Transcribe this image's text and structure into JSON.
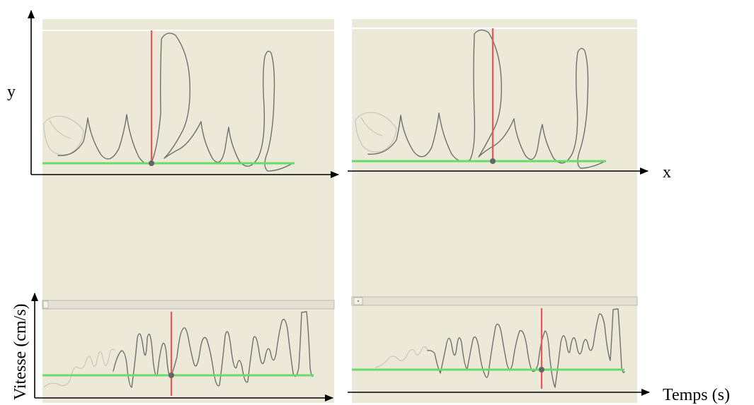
{
  "labels": {
    "y_axis": "y",
    "x_axis": "x",
    "velocity_axis": "Vitesse (cm/s)",
    "time_axis": "Temps (s)"
  },
  "colors": {
    "background": "#ece9d8",
    "baseline": "#66dd66",
    "cursor": "#ee5555",
    "ink": "#707070",
    "ghost_ink": "#c8c6bc",
    "marker": "#666666",
    "top_guide": "#ffffff",
    "axis": "#000000"
  },
  "panels": [
    {
      "id": "trajectory-left",
      "cursor_fraction": 0.44
    },
    {
      "id": "trajectory-right",
      "cursor_fraction": 0.56
    },
    {
      "id": "velocity-left",
      "cursor_fraction": 0.47
    },
    {
      "id": "velocity-right",
      "cursor_fraction": 0.65
    }
  ]
}
